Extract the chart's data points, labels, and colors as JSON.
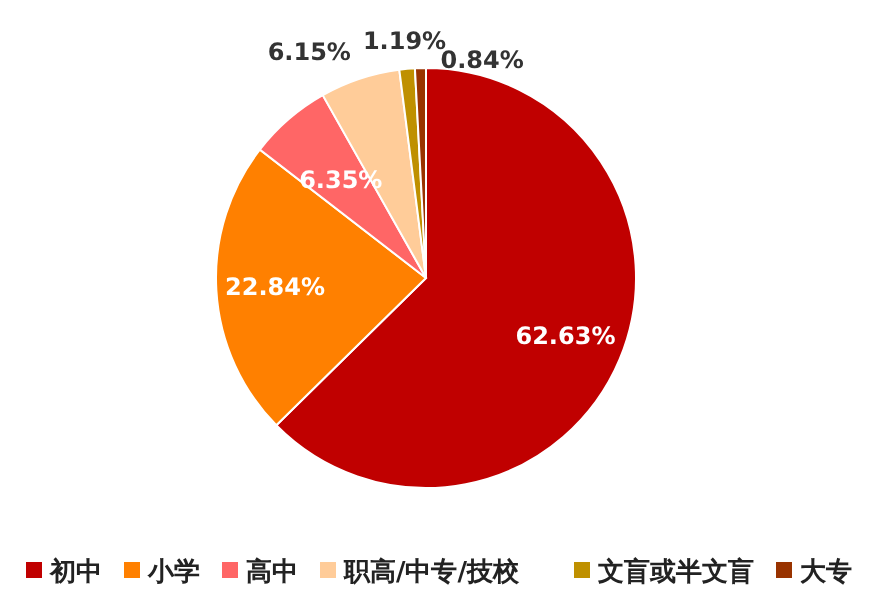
{
  "chart_data": {
    "type": "pie",
    "categories": [
      "初中",
      "小学",
      "高中",
      "职高/中专/技校",
      "文盲或半文盲",
      "大专"
    ],
    "values": [
      62.63,
      22.84,
      6.35,
      6.15,
      1.19,
      0.84
    ],
    "colors": [
      "#c00000",
      "#ff8000",
      "#ff6666",
      "#ffcc99",
      "#bf9000",
      "#993300"
    ],
    "value_labels": [
      "62.63%",
      "22.84%",
      "6.35%",
      "6.15%",
      "1.19%",
      "0.84%"
    ],
    "legend": "bottom"
  }
}
